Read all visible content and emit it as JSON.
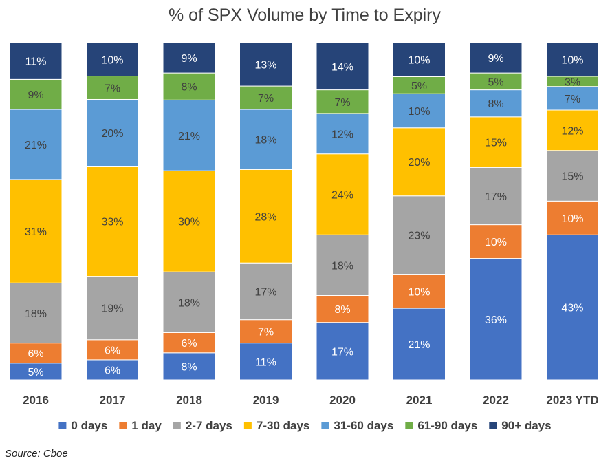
{
  "chart_data": {
    "type": "bar",
    "stacked": true,
    "percent_stacked": true,
    "title": "% of SPX Volume by Time to Expiry",
    "xlabel": "",
    "ylabel": "",
    "ylim": [
      0,
      100
    ],
    "grid": false,
    "legend_position": "bottom",
    "categories": [
      "2016",
      "2017",
      "2018",
      "2019",
      "2020",
      "2021",
      "2022",
      "2023 YTD"
    ],
    "series": [
      {
        "name": "0 days",
        "color": "#4472C4",
        "label_color": "#ffffff",
        "values": [
          5,
          6,
          8,
          11,
          17,
          21,
          36,
          43
        ]
      },
      {
        "name": "1 day",
        "color": "#ED7D31",
        "label_color": "#ffffff",
        "values": [
          6,
          6,
          6,
          7,
          8,
          10,
          10,
          10
        ]
      },
      {
        "name": "2-7 days",
        "color": "#A5A5A5",
        "label_color": "#404040",
        "values": [
          18,
          19,
          18,
          17,
          18,
          23,
          17,
          15
        ]
      },
      {
        "name": "7-30 days",
        "color": "#FFC000",
        "label_color": "#404040",
        "values": [
          31,
          33,
          30,
          28,
          24,
          20,
          15,
          12
        ]
      },
      {
        "name": "31-60 days",
        "color": "#5B9BD5",
        "label_color": "#404040",
        "values": [
          21,
          20,
          21,
          18,
          12,
          10,
          8,
          7
        ]
      },
      {
        "name": "61-90 days",
        "color": "#70AD47",
        "label_color": "#404040",
        "values": [
          9,
          7,
          8,
          7,
          7,
          5,
          5,
          3
        ]
      },
      {
        "name": "90+ days",
        "color": "#264478",
        "label_color": "#ffffff",
        "values": [
          11,
          10,
          9,
          13,
          14,
          10,
          9,
          10
        ]
      }
    ]
  },
  "source_note": "Source: Cboe"
}
